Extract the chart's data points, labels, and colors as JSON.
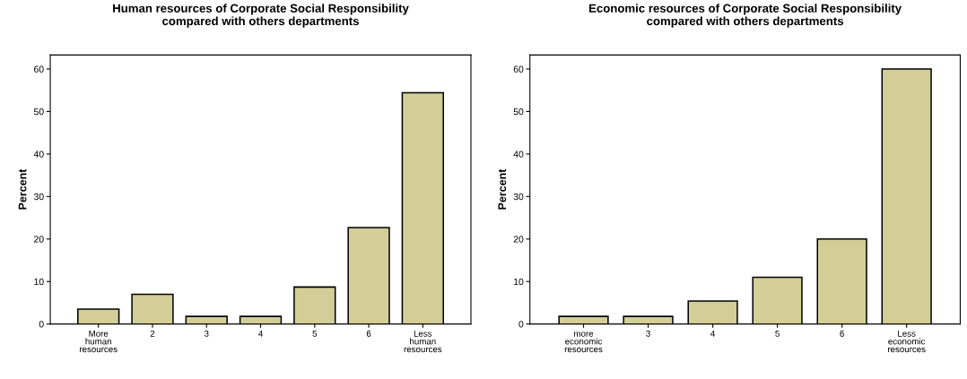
{
  "chart_data": [
    {
      "type": "bar",
      "title": "Human resources of Corporate Social Responsibility\ncompared with others departments",
      "ylabel": "Percent",
      "categories": [
        "More\nhuman\nresources",
        "2",
        "3",
        "4",
        "5",
        "6",
        "Less\nhuman\nresources"
      ],
      "values": [
        3.5,
        7.0,
        1.8,
        1.8,
        8.7,
        22.7,
        54.4
      ],
      "color": "#d3ce98",
      "ylim": [
        0,
        63.3
      ],
      "yticks": [
        0,
        10,
        20,
        30,
        40,
        50,
        60
      ],
      "grid": false,
      "legend": false
    },
    {
      "type": "bar",
      "title": "Economic resources of Corporate Social Responsibility\ncompared with others departments",
      "ylabel": "Percent",
      "categories": [
        "more\neconomic\nresources",
        "3",
        "4",
        "5",
        "6",
        "Less\neconomic\nresources"
      ],
      "values": [
        1.8,
        1.8,
        5.4,
        11.0,
        20.0,
        60.0
      ],
      "color": "#d3ce98",
      "ylim": [
        0,
        63.3
      ],
      "yticks": [
        0,
        10,
        20,
        30,
        40,
        50,
        60
      ],
      "grid": false,
      "legend": false
    }
  ]
}
